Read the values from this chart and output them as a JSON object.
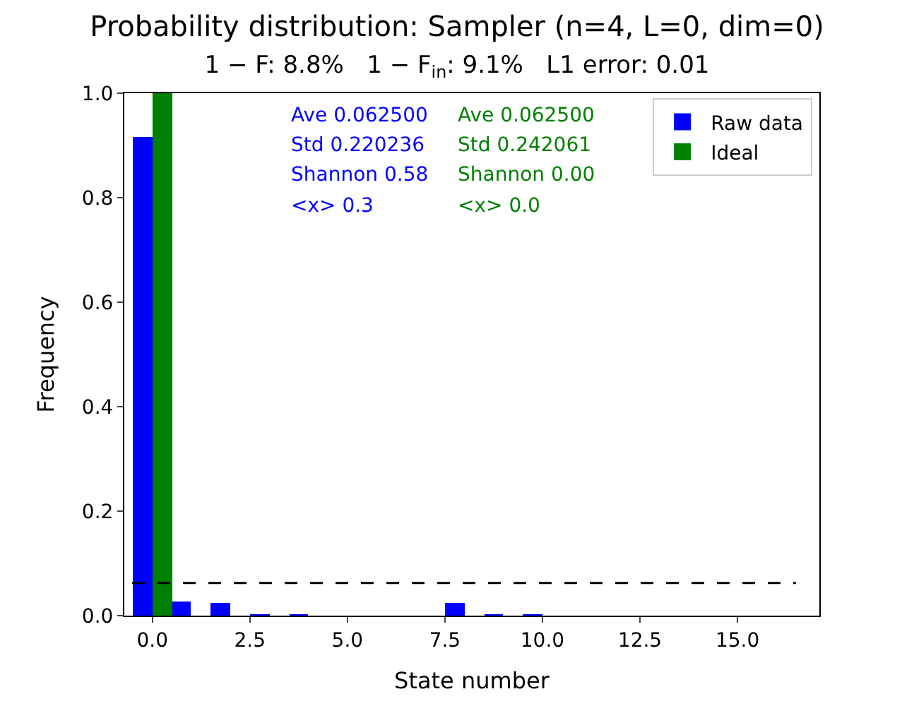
{
  "chart_data": {
    "type": "bar",
    "title": "Probability distribution: Sampler (n=4, L=0, dim=0)",
    "subtitle": "1 − F: 8.8%   1 − F$_{in}$: 9.1%   L1 error: 0.01",
    "xlabel": "State number",
    "ylabel": "Frequency",
    "x": [
      0,
      1,
      2,
      3,
      4,
      5,
      6,
      7,
      8,
      9,
      10,
      11,
      12,
      13,
      14,
      15
    ],
    "series": [
      {
        "name": "Raw data",
        "color": "#0000ff",
        "values": [
          0.915,
          0.028,
          0.025,
          0.002,
          0.002,
          0,
          0,
          0,
          0.023,
          0.002,
          0.002,
          0,
          0,
          0,
          0,
          0
        ]
      },
      {
        "name": "Ideal",
        "color": "#008000",
        "values": [
          1.0,
          0,
          0,
          0,
          0,
          0,
          0,
          0,
          0,
          0,
          0,
          0,
          0,
          0,
          0,
          0
        ]
      }
    ],
    "annotations": [
      "Ave 0.062500",
      "Std 0.220236",
      "Shannon 0.58",
      "<x> 0.3",
      "Ave 0.062500",
      "Std 0.242061",
      "Shannon 0.00",
      "<x> 0.0"
    ],
    "ref_lines": [
      {
        "axis": "y",
        "value": 0.0625,
        "color": "#000000",
        "line_style": "dashed"
      }
    ],
    "xlim": [
      -0.72,
      17.1
    ],
    "xticks": [
      {
        "value": 0,
        "label": "0.0"
      },
      {
        "value": 2.5,
        "label": "2.5"
      },
      {
        "value": 5,
        "label": "5.0"
      },
      {
        "value": 7.5,
        "label": "7.5"
      },
      {
        "value": 10,
        "label": "10.0"
      },
      {
        "value": 12.5,
        "label": "12.5"
      },
      {
        "value": 15,
        "label": "15.0"
      }
    ],
    "ylim": [
      0,
      1.0
    ],
    "yticks": [
      {
        "value": 0,
        "label": "0.0"
      },
      {
        "value": 0.2,
        "label": "0.2"
      },
      {
        "value": 0.4,
        "label": "0.4"
      },
      {
        "value": 0.6,
        "label": "0.6"
      },
      {
        "value": 0.8,
        "label": "0.8"
      },
      {
        "value": 1.0,
        "label": "1.0"
      }
    ],
    "legend": "top right"
  }
}
